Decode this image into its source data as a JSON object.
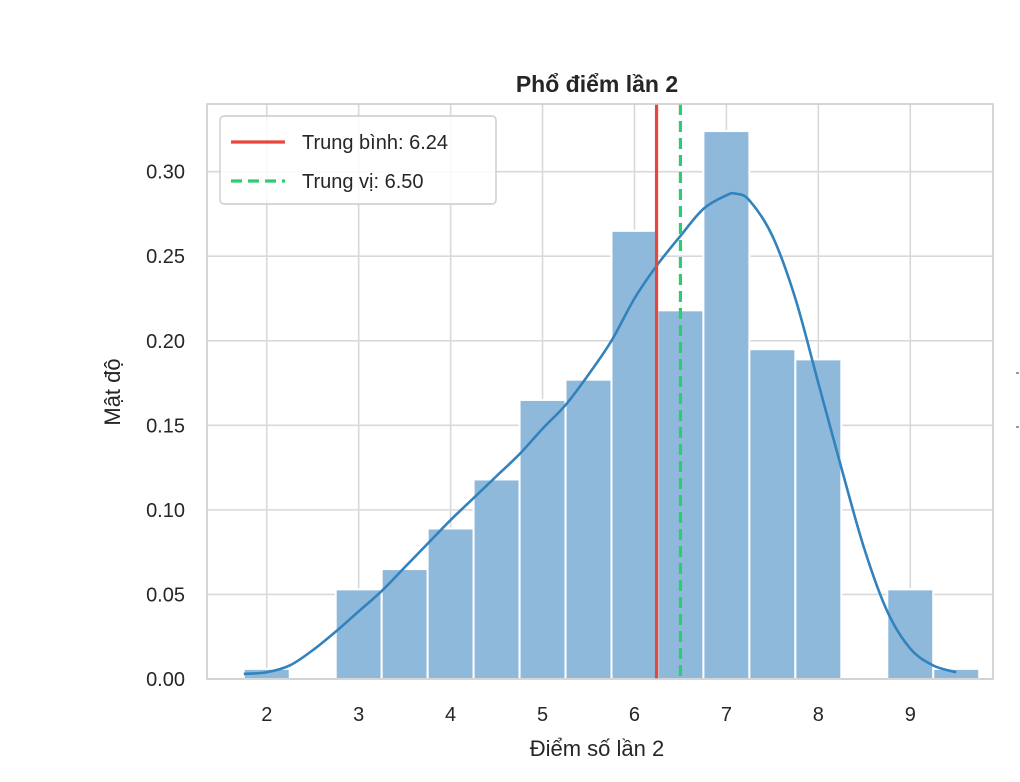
{
  "chart_data": {
    "type": "bar",
    "title": "Phổ điểm lần 2",
    "xlabel": "Điểm số lần 2",
    "ylabel": "Mật độ",
    "xlim": [
      1.35,
      9.9
    ],
    "ylim": [
      0,
      0.34
    ],
    "x_ticks": [
      "2",
      "3",
      "4",
      "5",
      "6",
      "7",
      "8",
      "9"
    ],
    "y_ticks": [
      "0.00",
      "0.05",
      "0.10",
      "0.15",
      "0.20",
      "0.25",
      "0.30"
    ],
    "grid": true,
    "legend_position": "top-left",
    "histogram": {
      "bin_width": 0.5,
      "bins": [
        {
          "x0": 1.75,
          "x1": 2.25,
          "density": 0.006
        },
        {
          "x0": 2.25,
          "x1": 2.75,
          "density": 0.0
        },
        {
          "x0": 2.75,
          "x1": 3.25,
          "density": 0.053
        },
        {
          "x0": 3.25,
          "x1": 3.75,
          "density": 0.065
        },
        {
          "x0": 3.75,
          "x1": 4.25,
          "density": 0.089
        },
        {
          "x0": 4.25,
          "x1": 4.75,
          "density": 0.118
        },
        {
          "x0": 4.75,
          "x1": 5.25,
          "density": 0.165
        },
        {
          "x0": 5.25,
          "x1": 5.75,
          "density": 0.177
        },
        {
          "x0": 5.75,
          "x1": 6.25,
          "density": 0.265
        },
        {
          "x0": 6.25,
          "x1": 6.75,
          "density": 0.218
        },
        {
          "x0": 6.75,
          "x1": 7.25,
          "density": 0.324
        },
        {
          "x0": 7.25,
          "x1": 7.75,
          "density": 0.195
        },
        {
          "x0": 7.75,
          "x1": 8.25,
          "density": 0.189
        },
        {
          "x0": 8.25,
          "x1": 8.75,
          "density": 0.0
        },
        {
          "x0": 8.75,
          "x1": 9.25,
          "density": 0.053
        },
        {
          "x0": 9.25,
          "x1": 9.75,
          "density": 0.006
        }
      ]
    },
    "kde": {
      "x": [
        1.75,
        2.0,
        2.25,
        2.5,
        2.75,
        3.0,
        3.25,
        3.5,
        3.75,
        4.0,
        4.25,
        4.5,
        4.75,
        5.0,
        5.25,
        5.5,
        5.75,
        6.0,
        6.25,
        6.5,
        6.75,
        7.0,
        7.1,
        7.25,
        7.5,
        7.75,
        8.0,
        8.25,
        8.5,
        8.75,
        9.0,
        9.25,
        9.5
      ],
      "y": [
        0.003,
        0.004,
        0.008,
        0.017,
        0.028,
        0.04,
        0.052,
        0.066,
        0.08,
        0.094,
        0.107,
        0.12,
        0.133,
        0.148,
        0.162,
        0.18,
        0.2,
        0.225,
        0.245,
        0.262,
        0.278,
        0.286,
        0.287,
        0.283,
        0.262,
        0.225,
        0.175,
        0.125,
        0.077,
        0.04,
        0.018,
        0.008,
        0.004
      ]
    },
    "bar_color": "#8fb9db",
    "kde_color": "#3182bd",
    "series": [
      {
        "name": "Trung bình: 6.24",
        "kind": "vline",
        "value": 6.24,
        "color": "#e8453c",
        "style": "solid"
      },
      {
        "name": "Trung vị: 6.50",
        "kind": "vline",
        "value": 6.5,
        "color": "#2ecc71",
        "style": "dashed"
      }
    ]
  }
}
